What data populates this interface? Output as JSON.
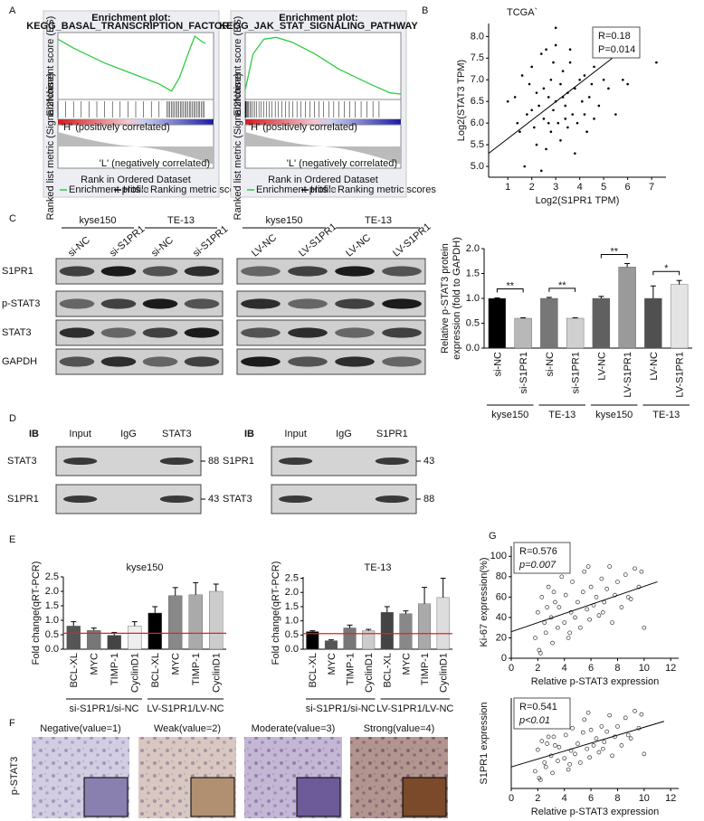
{
  "panels": [
    "A",
    "B",
    "C",
    "D",
    "E",
    "F",
    "G"
  ],
  "gsea": [
    {
      "title": "Enrichment plot:",
      "pathway": "KEGG_BASAL_TRANSCRIPTION_FACTORS"
    },
    {
      "title": "Enrichment plot:",
      "pathway": "KEGG_JAK_STAT_SIGNALING_PATHWAY"
    }
  ],
  "gsea_labels": {
    "es": "Enrichment score (ES)",
    "metric": "Ranked list metric (Signal2Noise)",
    "rank": "Rank in Ordered Dataset",
    "pos": "'H' (positively correlated)",
    "neg": "'L' (negatively correlated)",
    "legend": [
      "Enrichment profile",
      "Hits",
      "Ranking metric scores"
    ]
  },
  "blot_c": {
    "groups": [
      "kyse150",
      "TE-13",
      "kyse150",
      "TE-13"
    ],
    "lanes": [
      "si-NC",
      "si-S1PR1",
      "si-NC",
      "si-S1PR1",
      "LV-NC",
      "LV-S1PR1",
      "LV-NC",
      "LV-S1PR1"
    ],
    "rows": [
      "S1PR1",
      "p-STAT3",
      "STAT3",
      "GAPDH"
    ]
  },
  "blot_d": [
    {
      "ib": "IB",
      "columns": [
        "Input",
        "IgG",
        "STAT3"
      ],
      "rows": [
        "STAT3",
        "S1PR1"
      ],
      "mw": [
        "88",
        "43"
      ]
    },
    {
      "ib": "IB",
      "columns": [
        "Input",
        "IgG",
        "S1PR1"
      ],
      "rows": [
        "S1PR1",
        "STAT3"
      ],
      "mw": [
        "43",
        "88"
      ]
    }
  ],
  "ihc": {
    "row_label": "p-STAT3",
    "columns": [
      "Negative(value=1)",
      "Weak(value=2)",
      "Moderate(value=3)",
      "Strong(value=4)"
    ]
  },
  "chart_data": [
    {
      "type": "scatter",
      "title": "TCGA`",
      "xlabel": "Log2(S1PR1 TPM)",
      "ylabel": "Log2(STAT3 TPM)",
      "annotations": [
        "R=0.18",
        "P=0.014"
      ],
      "marker": "filled",
      "color": "#000000",
      "x": [
        1.0,
        1.3,
        1.5,
        1.6,
        1.8,
        1.9,
        2.0,
        2.1,
        2.2,
        2.3,
        2.4,
        2.5,
        2.5,
        2.6,
        2.7,
        2.8,
        2.8,
        2.9,
        3.0,
        3.0,
        3.1,
        3.2,
        3.2,
        3.3,
        3.4,
        3.5,
        3.5,
        3.6,
        3.7,
        3.8,
        3.9,
        4.0,
        4.1,
        4.2,
        4.3,
        4.4,
        4.5,
        4.6,
        4.8,
        5.0,
        5.2,
        5.5,
        5.8,
        6.0,
        7.2,
        1.7,
        2.2,
        2.6,
        3.0,
        3.4,
        3.8,
        4.2,
        2.4,
        2.9,
        3.6,
        1.4,
        2.0,
        2.7,
        3.3,
        4.6
      ],
      "y": [
        6.5,
        6.6,
        5.8,
        7.1,
        6.2,
        6.9,
        7.3,
        5.9,
        6.7,
        6.4,
        7.6,
        6.1,
        6.8,
        5.4,
        6.6,
        7.0,
        5.8,
        6.3,
        7.8,
        6.5,
        6.0,
        6.9,
        5.6,
        7.2,
        6.4,
        6.7,
        5.9,
        7.4,
        6.2,
        6.8,
        6.0,
        7.0,
        6.5,
        7.1,
        5.8,
        6.6,
        6.9,
        7.3,
        6.4,
        7.0,
        6.8,
        6.2,
        7.0,
        6.9,
        7.4,
        5.0,
        5.5,
        7.7,
        8.2,
        6.1,
        5.3,
        6.2,
        4.9,
        7.4,
        7.7,
        6.0,
        6.3,
        6.0,
        6.6,
        6.1
      ],
      "fit": {
        "x": [
          0.2,
          6.3
        ],
        "y": [
          5.3,
          7.9
        ]
      },
      "xlim": [
        0.2,
        7.6
      ],
      "ylim": [
        4.75,
        8.3
      ],
      "xticks": [
        1,
        2,
        3,
        4,
        5,
        6,
        7
      ],
      "yticks": [
        {
          "value": 5,
          "label": "5.0"
        },
        5.5,
        {
          "value": 6,
          "label": "6.0"
        },
        6.5,
        {
          "value": 7,
          "label": "7.0"
        },
        7.5,
        {
          "value": 8,
          "label": "8.0"
        }
      ]
    },
    {
      "type": "bar",
      "ylabel": [
        "Relative p-STAT3 protein",
        "expression (fold to GAPDH)"
      ],
      "categories": [
        "si-NC",
        "si-S1PR1",
        "si-NC",
        "si-S1PR1",
        "LV-NC",
        "LV-S1PR1",
        "LV-NC",
        "LV-S1PR1"
      ],
      "values": [
        1.0,
        0.6,
        1.0,
        0.6,
        1.0,
        1.63,
        1.0,
        1.28
      ],
      "errors": [
        0.01,
        0.01,
        0.02,
        0.01,
        0.04,
        0.07,
        0.25,
        0.08
      ],
      "colors": [
        "#000000",
        "#b8b8b8",
        "#777777",
        "#d0d0d0",
        "#606060",
        "#9a9a9a",
        "#505050",
        "#e4e4e4"
      ],
      "ylim": [
        0,
        2
      ],
      "yticks": [
        {
          "value": 0,
          "label": "0.0"
        },
        0.5,
        {
          "value": 1,
          "label": "1.0"
        },
        1.5,
        {
          "value": 2,
          "label": "2.0"
        }
      ],
      "groups": [
        "kyse150",
        "TE-13",
        "kyse150",
        "TE-13"
      ],
      "significance": [
        "**",
        "**",
        "**",
        "*"
      ]
    },
    {
      "type": "bar",
      "title": "kyse150",
      "ylabel": [
        "Fold change(qRT-PCR)"
      ],
      "categories": [
        "BCL-XL",
        "MYC",
        "TIMP-1",
        "CyclinD1",
        "BCL-XL",
        "MYC",
        "TIMP-1",
        "CyclinD1"
      ],
      "values": [
        0.8,
        0.65,
        0.48,
        0.8,
        1.25,
        1.85,
        1.88,
        2.0
      ],
      "errors": [
        0.15,
        0.08,
        0.1,
        0.15,
        0.22,
        0.28,
        0.42,
        0.25
      ],
      "colors": [
        "#555555",
        "#777777",
        "#444444",
        "#eeeeee",
        "#000000",
        "#888888",
        "#aaaaaa",
        "#cccccc"
      ],
      "ylim": [
        0,
        2.5
      ],
      "yticks": [
        {
          "value": 0,
          "label": "0.0"
        },
        0.5,
        {
          "value": 1,
          "label": "1.0"
        },
        1.5,
        {
          "value": 2,
          "label": "2.0"
        },
        2.5
      ],
      "groups": [
        "si-S1PR1/si-NC",
        "LV-S1PR1/LV-NC"
      ],
      "reference_line": 0.55,
      "reference_color": "#d62728"
    },
    {
      "type": "bar",
      "title": "TE-13",
      "ylabel": [
        "Fold change(qRT-PCR)"
      ],
      "categories": [
        "BCL-XL",
        "MYC",
        "TIMP-1",
        "CyclinD1",
        "BCL-XL",
        "MYC",
        "TIMP-1",
        "CyclinD1"
      ],
      "values": [
        0.62,
        0.3,
        0.75,
        0.65,
        1.3,
        1.25,
        1.6,
        1.82
      ],
      "errors": [
        0.03,
        0.03,
        0.1,
        0.05,
        0.2,
        0.1,
        0.58,
        0.68
      ],
      "colors": [
        "#000000",
        "#555555",
        "#777777",
        "#cccccc",
        "#444444",
        "#888888",
        "#aaaaaa",
        "#dddddd"
      ],
      "ylim": [
        0,
        2.55
      ],
      "yticks": [
        {
          "value": 0,
          "label": "0.0"
        },
        0.5,
        {
          "value": 1,
          "label": "1.0"
        },
        1.5,
        {
          "value": 2,
          "label": "2.0"
        },
        2.5
      ],
      "groups": [
        "si-S1PR1/si-NC",
        "LV-S1PR1/LV-NC"
      ],
      "reference_line": 0.55,
      "reference_color": "#d62728"
    },
    {
      "type": "scatter",
      "xlabel": "Relative p-STAT3 expression",
      "ylabel": "Ki-67 expression(%)",
      "annotations": [
        "R=0.576",
        "p=0.007"
      ],
      "marker": "open",
      "color": "#333333",
      "x": [
        1.8,
        2.0,
        2.1,
        2.3,
        2.5,
        2.6,
        2.8,
        3.0,
        3.1,
        3.3,
        3.5,
        3.6,
        3.8,
        4.0,
        4.1,
        4.3,
        4.5,
        4.6,
        4.8,
        5.0,
        5.2,
        5.4,
        5.5,
        5.7,
        5.9,
        6.0,
        6.2,
        6.4,
        6.6,
        6.8,
        7.0,
        7.2,
        7.4,
        7.6,
        7.8,
        8.0,
        8.3,
        8.6,
        9.0,
        9.3,
        9.6,
        10.0,
        2.2,
        3.2,
        4.4,
        5.8,
        6.9,
        8.8,
        9.8,
        2.7
      ],
      "y": [
        20,
        45,
        8,
        60,
        35,
        25,
        70,
        40,
        15,
        55,
        30,
        50,
        80,
        35,
        62,
        20,
        45,
        75,
        40,
        55,
        30,
        65,
        85,
        48,
        38,
        70,
        52,
        60,
        42,
        78,
        55,
        68,
        90,
        35,
        62,
        75,
        50,
        82,
        58,
        88,
        70,
        30,
        5,
        65,
        25,
        90,
        45,
        60,
        85,
        50
      ],
      "fit": {
        "x": [
          0,
          11
        ],
        "y": [
          26,
          75
        ]
      },
      "xlim": [
        0,
        12.6
      ],
      "ylim": [
        0,
        110
      ],
      "xticks": [
        0,
        2,
        4,
        6,
        8,
        10,
        12
      ],
      "yticks": [
        0,
        20,
        40,
        60,
        80,
        100
      ]
    },
    {
      "type": "scatter",
      "xlabel": "Relative p-STAT3 expression",
      "ylabel": "S1PR1 expression",
      "annotations": [
        "R=0.541",
        "p<0.01"
      ],
      "marker": "open",
      "color": "#333333",
      "x": [
        1.8,
        2.0,
        2.1,
        2.3,
        2.5,
        2.6,
        2.8,
        3.0,
        3.1,
        3.3,
        3.5,
        3.6,
        3.8,
        4.0,
        4.1,
        4.3,
        4.5,
        4.6,
        4.8,
        5.0,
        5.2,
        5.4,
        5.5,
        5.7,
        5.9,
        6.0,
        6.2,
        6.4,
        6.6,
        6.8,
        7.0,
        7.2,
        7.4,
        7.6,
        7.8,
        8.0,
        8.3,
        8.6,
        9.0,
        9.3,
        9.6,
        10.0,
        2.2,
        3.2,
        4.4,
        5.8,
        6.9,
        8.8,
        9.8,
        2.7
      ],
      "y": [
        2.0,
        4.5,
        1.2,
        5.5,
        3.0,
        2.5,
        6.0,
        3.8,
        1.8,
        5.0,
        3.2,
        4.8,
        7.5,
        3.5,
        6.2,
        2.2,
        4.4,
        7.0,
        4.0,
        5.2,
        3.0,
        6.5,
        8.0,
        4.6,
        3.6,
        6.8,
        5.0,
        5.8,
        4.2,
        7.2,
        5.4,
        6.6,
        8.5,
        3.8,
        6.0,
        7.2,
        5.0,
        8.2,
        5.8,
        9.0,
        7.0,
        4.0,
        1.0,
        6.0,
        2.8,
        8.8,
        4.6,
        6.2,
        8.6,
        5.2
      ],
      "fit": {
        "x": [
          0,
          11.5
        ],
        "y": [
          2.5,
          7.8
        ]
      },
      "xlim": [
        0,
        12.6
      ],
      "ylim": [
        0,
        10.5
      ],
      "xticks": [
        0,
        2,
        4,
        6,
        8,
        10,
        12
      ]
    }
  ]
}
